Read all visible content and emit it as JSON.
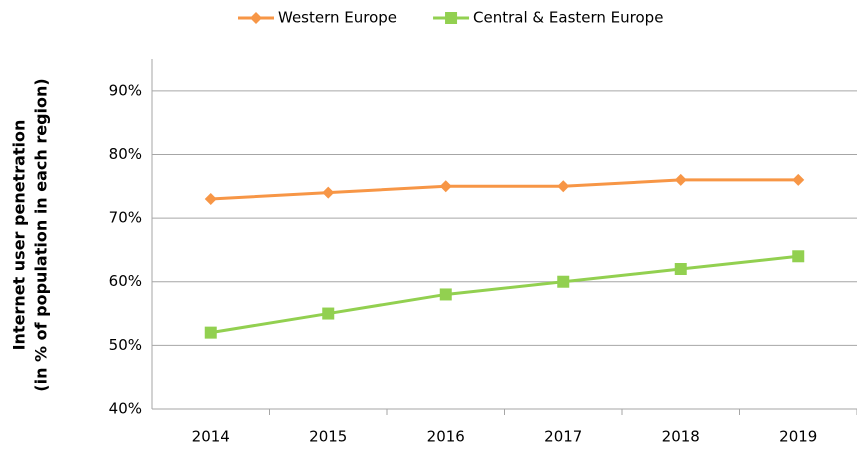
{
  "chart_data": {
    "type": "line",
    "ylabel": [
      "Internet user penetration",
      "(in % of population in each region)"
    ],
    "categories": [
      "2014",
      "2015",
      "2016",
      "2017",
      "2018",
      "2019"
    ],
    "series": [
      {
        "name": "Western Europe",
        "color": "#f79646",
        "marker": "diamond",
        "values": [
          73,
          74,
          75,
          75,
          76,
          76
        ]
      },
      {
        "name": "Central & Eastern Europe",
        "color": "#92d050",
        "marker": "square",
        "values": [
          52,
          55,
          58,
          60,
          62,
          64
        ]
      }
    ],
    "ylim": [
      40,
      95
    ],
    "yticks": [
      {
        "value": 40,
        "label": "40%"
      },
      {
        "value": 50,
        "label": "50%"
      },
      {
        "value": 60,
        "label": "60%"
      },
      {
        "value": 70,
        "label": "70%"
      },
      {
        "value": 80,
        "label": "80%"
      },
      {
        "value": 90,
        "label": "90%"
      }
    ],
    "grid": true,
    "legend": "top"
  }
}
